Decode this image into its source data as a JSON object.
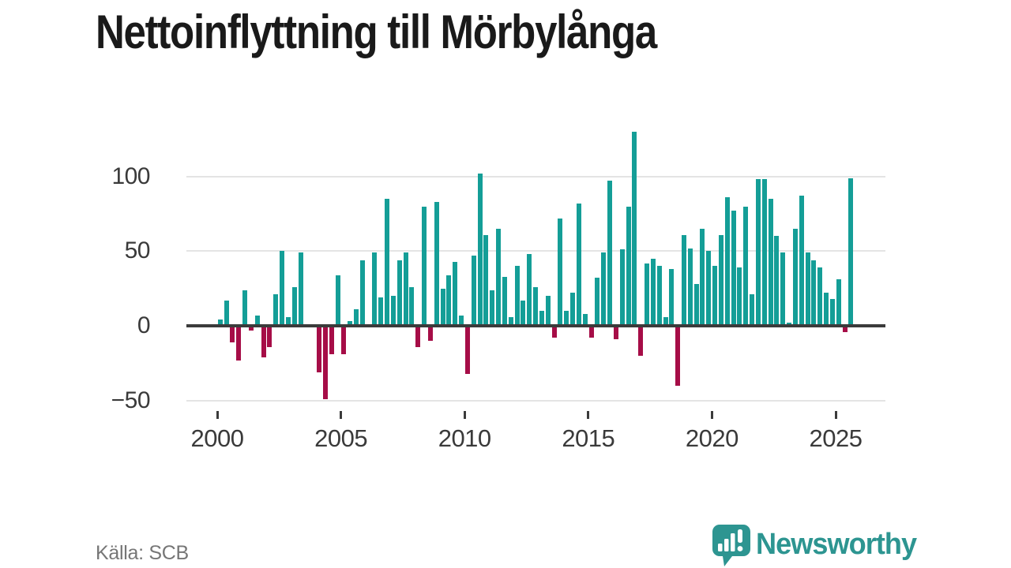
{
  "header": {
    "title": "Nettoinflyttning till Mörbylånga"
  },
  "footer": {
    "source": "Källa: SCB",
    "logo_text": "Newsworthy"
  },
  "colors": {
    "positive_bar": "#149e97",
    "negative_bar": "#a60d47",
    "gridline": "#e4e4e4",
    "zero_line": "#3b3b3b",
    "title_text": "#1a1a1a",
    "axis_text": "#3a3a3a",
    "source_text": "#767676",
    "logo_teal": "#2d9591"
  },
  "chart_data": {
    "type": "bar",
    "title": "Nettoinflyttning till Mörbylånga",
    "frequency": "quarterly",
    "start_year": 2000,
    "start_quarter": 1,
    "quarters_per_year": 4,
    "values": [
      4,
      17,
      -11,
      -23,
      24,
      -3,
      7,
      -21,
      -14,
      21,
      50,
      6,
      26,
      49,
      0,
      0,
      -31,
      -49,
      -19,
      34,
      -19,
      3,
      11,
      44,
      0,
      49,
      19,
      85,
      20,
      44,
      49,
      26,
      -14,
      80,
      -10,
      83,
      25,
      34,
      43,
      7,
      -32,
      47,
      102,
      61,
      24,
      65,
      33,
      6,
      40,
      17,
      48,
      26,
      10,
      20,
      -8,
      72,
      10,
      22,
      82,
      8,
      -8,
      32,
      49,
      97,
      -9,
      51,
      80,
      130,
      -20,
      42,
      45,
      40,
      6,
      38,
      -40,
      61,
      52,
      28,
      65,
      50,
      40,
      61,
      86,
      77,
      39,
      80,
      21,
      98,
      98,
      85,
      60,
      49,
      2,
      65,
      87,
      49,
      44,
      39,
      22,
      18,
      31,
      -4,
      99
    ],
    "y_ticks": [
      100,
      50,
      0,
      -50
    ],
    "y_tick_labels": [
      "100",
      "50",
      "0",
      "−50"
    ],
    "x_tick_labels": [
      "2000",
      "2005",
      "2010",
      "2015",
      "2020",
      "2025"
    ],
    "ylim": [
      -60,
      135
    ],
    "grid": "horizontal-only",
    "legend": "none",
    "positive_color": "#149e97",
    "negative_color": "#a60d47"
  }
}
